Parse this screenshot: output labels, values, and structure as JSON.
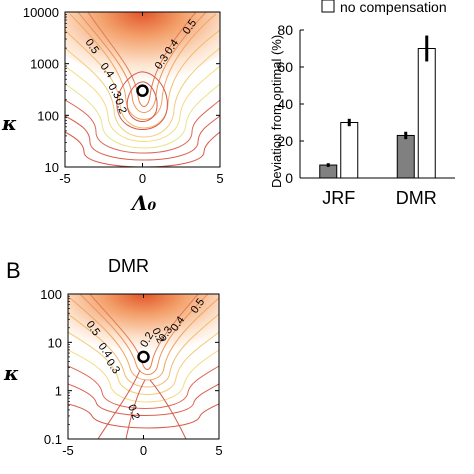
{
  "panel_b": {
    "label": "B",
    "title": "DMR"
  },
  "chart_data": [
    {
      "id": "contour_top",
      "type": "heatmap",
      "xlabel": "Λ₀",
      "ylabel": "κ",
      "xlim": [
        -5,
        5
      ],
      "ylim": [
        10,
        10000
      ],
      "y_scale": "log",
      "xticks": [
        "-5",
        "0",
        "5"
      ],
      "yticks": [
        "10",
        "100",
        "1000",
        "10000"
      ],
      "contour_labels": [
        "0.5",
        "0.4",
        "0.3",
        "0.2",
        "0.5",
        "0.4",
        "0.3"
      ],
      "optimum_marker": {
        "x": 0,
        "y": 300
      }
    },
    {
      "id": "bar_deviation",
      "type": "bar",
      "ylabel": "Deviation from optimal (%)",
      "categories": [
        "JRF",
        "DMR"
      ],
      "ylim": [
        0,
        80
      ],
      "yticks": [
        "0",
        "20",
        "40",
        "60",
        "80"
      ],
      "legend": {
        "label": "no compensation",
        "placement": "top"
      },
      "series": [
        {
          "values": [
            7,
            23
          ],
          "errors": [
            1,
            2
          ],
          "color": "#808080"
        },
        {
          "name": "no compensation",
          "values": [
            30,
            70
          ],
          "errors": [
            2,
            7
          ],
          "color": "#ffffff"
        }
      ]
    },
    {
      "id": "contour_bottom",
      "type": "heatmap",
      "xlim": [
        -5,
        5
      ],
      "ylim": [
        0.1,
        100
      ],
      "y_scale": "log",
      "ylabel": "κ",
      "xticks": [
        "-5",
        "0",
        "5"
      ],
      "yticks": [
        "0.1",
        "1",
        "10",
        "100"
      ],
      "contour_labels": [
        "0.5",
        "0.4",
        "0.3",
        "0.2",
        "0.2",
        "0.3",
        "0.4",
        "0.5",
        "0.2"
      ],
      "optimum_marker": {
        "x": 0,
        "y": 5
      }
    }
  ]
}
